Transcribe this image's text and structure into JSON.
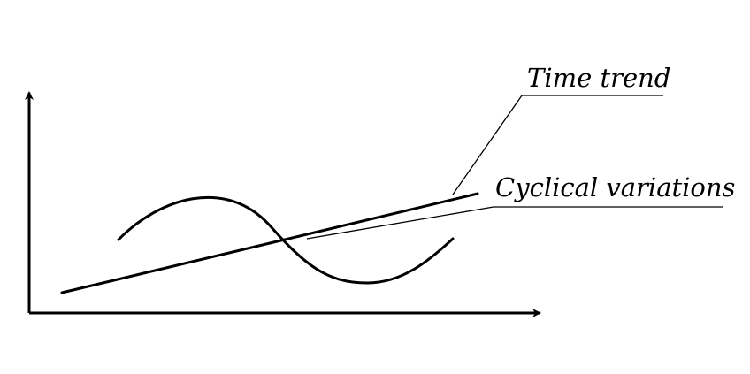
{
  "labels": {
    "time_trend": "Time trend",
    "cyclical_variations": "Cyclical variations"
  },
  "colors": {
    "ink": "#000000",
    "background": "#ffffff"
  }
}
